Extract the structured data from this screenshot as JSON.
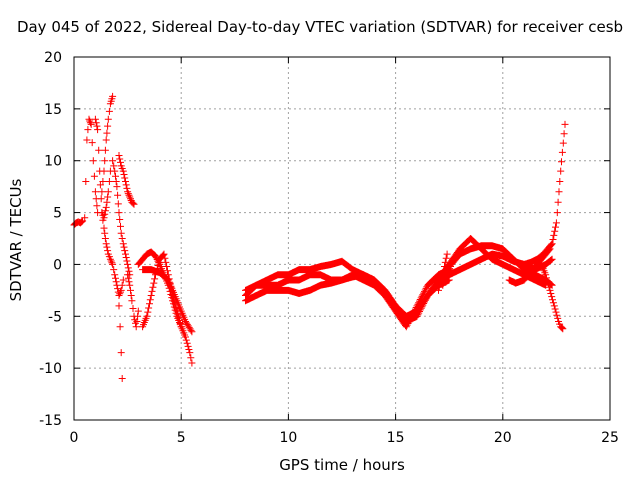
{
  "chart_data": {
    "type": "scatter",
    "title": "Day 045 of 2022, Sidereal Day-to-day VTEC variation (SDTVAR) for receiver cesb",
    "xlabel": "GPS time / hours",
    "ylabel": "SDTVAR / TECUs",
    "xlim": [
      0,
      25
    ],
    "ylim": [
      -15,
      20
    ],
    "xticks": [
      0,
      5,
      10,
      15,
      20,
      25
    ],
    "yticks": [
      -15,
      -10,
      -5,
      0,
      5,
      10,
      15,
      20
    ],
    "grid": true,
    "marker": "+",
    "series": [
      {
        "name": "SDTVAR",
        "color": "#ff0000",
        "tracks": [
          {
            "x": [
              0.0,
              0.1,
              0.2,
              0.3,
              0.4
            ],
            "y": [
              3.8,
              4.0,
              4.1,
              4.0,
              4.2
            ]
          },
          {
            "x": [
              0.5,
              0.55,
              0.6,
              0.7,
              0.8,
              0.9,
              1.0,
              1.1
            ],
            "y": [
              4.5,
              8.0,
              12.0,
              14.0,
              13.5,
              10.0,
              7.0,
              5.0
            ]
          },
          {
            "x": [
              1.0,
              1.1,
              1.2,
              1.3,
              1.4,
              1.5,
              1.6,
              1.7
            ],
            "y": [
              14.0,
              13.0,
              9.0,
              5.0,
              4.5,
              5.5,
              7.0,
              9.0
            ]
          },
          {
            "x": [
              1.3,
              1.4,
              1.5,
              1.6,
              1.7,
              1.8
            ],
            "y": [
              7.0,
              9.0,
              12.0,
              14.0,
              15.5,
              16.2
            ]
          },
          {
            "x": [
              1.3,
              1.4,
              1.5,
              1.6,
              1.7,
              1.8,
              1.9,
              2.0,
              2.1,
              2.2,
              2.3
            ],
            "y": [
              5.0,
              3.5,
              2.0,
              1.0,
              0.5,
              0.0,
              -1.0,
              -2.0,
              -3.0,
              -2.5,
              -1.5
            ]
          },
          {
            "x": [
              1.8,
              1.9,
              2.0,
              2.1,
              2.2,
              2.3,
              2.4,
              2.5,
              2.6
            ],
            "y": [
              10.0,
              9.0,
              7.5,
              5.0,
              3.0,
              2.0,
              1.0,
              0.0,
              -1.0
            ]
          },
          {
            "x": [
              2.1,
              2.2,
              2.3,
              2.4,
              2.5,
              2.6,
              2.7,
              2.8
            ],
            "y": [
              10.5,
              9.5,
              9.0,
              8.0,
              7.0,
              6.5,
              6.0,
              5.8
            ]
          },
          {
            "x": [
              2.1,
              2.15,
              2.2,
              2.25
            ],
            "y": [
              -4.0,
              -6.0,
              -8.5,
              -11.0
            ]
          },
          {
            "x": [
              2.5,
              2.6,
              2.7,
              2.8,
              2.9,
              3.0
            ],
            "y": [
              -1.0,
              -2.0,
              -3.5,
              -5.0,
              -6.0,
              -4.5
            ]
          },
          {
            "x": [
              3.2,
              3.4,
              3.6,
              3.8,
              4.0,
              4.2,
              4.4,
              4.6,
              4.8,
              5.0,
              5.2,
              5.4,
              5.5
            ],
            "y": [
              -6.0,
              -5.0,
              -3.0,
              -1.0,
              0.5,
              1.0,
              -1.0,
              -3.0,
              -4.5,
              -6.0,
              -7.0,
              -8.5,
              -9.5
            ]
          },
          {
            "x": [
              3.0,
              3.2,
              3.4,
              3.6,
              3.8,
              4.0,
              4.2,
              4.4,
              4.6,
              4.8,
              5.0
            ],
            "y": [
              0.0,
              0.5,
              1.0,
              1.2,
              0.8,
              0.0,
              -1.0,
              -2.0,
              -3.5,
              -5.0,
              -6.0
            ]
          },
          {
            "x": [
              3.2,
              3.6,
              4.0,
              4.4,
              4.8,
              5.2,
              5.5
            ],
            "y": [
              -0.5,
              -0.5,
              -0.8,
              -1.5,
              -3.5,
              -5.5,
              -6.5
            ]
          },
          {
            "x": [
              8.0,
              8.5,
              9.0,
              9.5,
              10.0,
              10.5,
              11.0,
              11.5,
              12.0,
              12.5,
              13.0,
              13.5,
              14.0,
              14.5,
              15.0,
              15.5,
              16.0,
              16.5,
              17.0,
              17.5
            ],
            "y": [
              -3.0,
              -2.0,
              -1.5,
              -1.0,
              -1.0,
              -0.5,
              -0.5,
              -0.2,
              0.0,
              0.3,
              -0.5,
              -1.0,
              -1.5,
              -2.5,
              -4.0,
              -5.5,
              -5.0,
              -3.0,
              -1.5,
              0.0
            ]
          },
          {
            "x": [
              8.0,
              8.5,
              9.0,
              9.5,
              10.0,
              10.5,
              11.0,
              11.5,
              12.0,
              12.5,
              13.0,
              13.5,
              14.0,
              14.5,
              15.0,
              15.5,
              16.0,
              16.5,
              17.0,
              17.5
            ],
            "y": [
              -2.5,
              -2.0,
              -2.0,
              -2.0,
              -1.5,
              -1.5,
              -1.0,
              -1.0,
              -1.5,
              -1.5,
              -1.0,
              -1.5,
              -2.0,
              -3.0,
              -4.5,
              -6.0,
              -4.0,
              -2.0,
              -1.0,
              -0.5
            ]
          },
          {
            "x": [
              8.0,
              8.5,
              9.0,
              9.5,
              10.0,
              10.5,
              11.0,
              11.5,
              12.0,
              12.5,
              13.0,
              13.5,
              14.0,
              14.5,
              15.0,
              15.5,
              16.0,
              16.5,
              17.0,
              17.5
            ],
            "y": [
              -3.5,
              -3.0,
              -2.5,
              -2.5,
              -2.5,
              -2.8,
              -2.5,
              -2.0,
              -1.8,
              -1.5,
              -1.2,
              -1.0,
              -1.5,
              -2.5,
              -4.0,
              -5.0,
              -4.5,
              -3.0,
              -2.0,
              -1.5
            ]
          },
          {
            "x": [
              17.0,
              17.2,
              17.4
            ],
            "y": [
              -2.5,
              -1.0,
              1.0
            ]
          },
          {
            "x": [
              17.2,
              17.4,
              17.6,
              17.8,
              18.0,
              18.5,
              19.0,
              19.5,
              20.0,
              20.5,
              21.0,
              21.5,
              22.0,
              22.3
            ],
            "y": [
              -2.0,
              -1.0,
              0.0,
              0.5,
              1.0,
              1.5,
              1.8,
              1.8,
              1.5,
              0.5,
              -0.5,
              -1.0,
              -1.5,
              -2.0
            ]
          },
          {
            "x": [
              17.2,
              17.5,
              18.0,
              18.5,
              19.0,
              19.5,
              20.0,
              20.5,
              21.0,
              21.5,
              22.0,
              22.3
            ],
            "y": [
              -1.5,
              -1.0,
              -0.5,
              0.0,
              0.5,
              1.0,
              0.8,
              0.3,
              0.0,
              -0.5,
              0.0,
              0.5
            ]
          },
          {
            "x": [
              17.5,
              18.0,
              18.5,
              19.0,
              19.5,
              20.0,
              20.5,
              21.0,
              21.5,
              22.0
            ],
            "y": [
              0.0,
              1.5,
              2.5,
              1.5,
              0.5,
              0.0,
              -0.5,
              -1.0,
              -1.5,
              -2.0
            ]
          },
          {
            "x": [
              20.3,
              20.6,
              21.0,
              21.4,
              21.8,
              22.0,
              22.2
            ],
            "y": [
              -1.5,
              -1.8,
              -1.5,
              -0.5,
              0.5,
              1.0,
              1.5
            ]
          },
          {
            "x": [
              21.0,
              21.3,
              21.6,
              21.9,
              22.1,
              22.3,
              22.5,
              22.7,
              22.9
            ],
            "y": [
              0.0,
              0.2,
              0.5,
              1.0,
              1.5,
              2.0,
              4.0,
              9.0,
              13.5
            ]
          },
          {
            "x": [
              21.8,
              22.0,
              22.2,
              22.4,
              22.6,
              22.7,
              22.8
            ],
            "y": [
              0.0,
              -1.0,
              -2.5,
              -4.0,
              -5.5,
              -6.0,
              -6.2
            ]
          }
        ]
      }
    ]
  }
}
